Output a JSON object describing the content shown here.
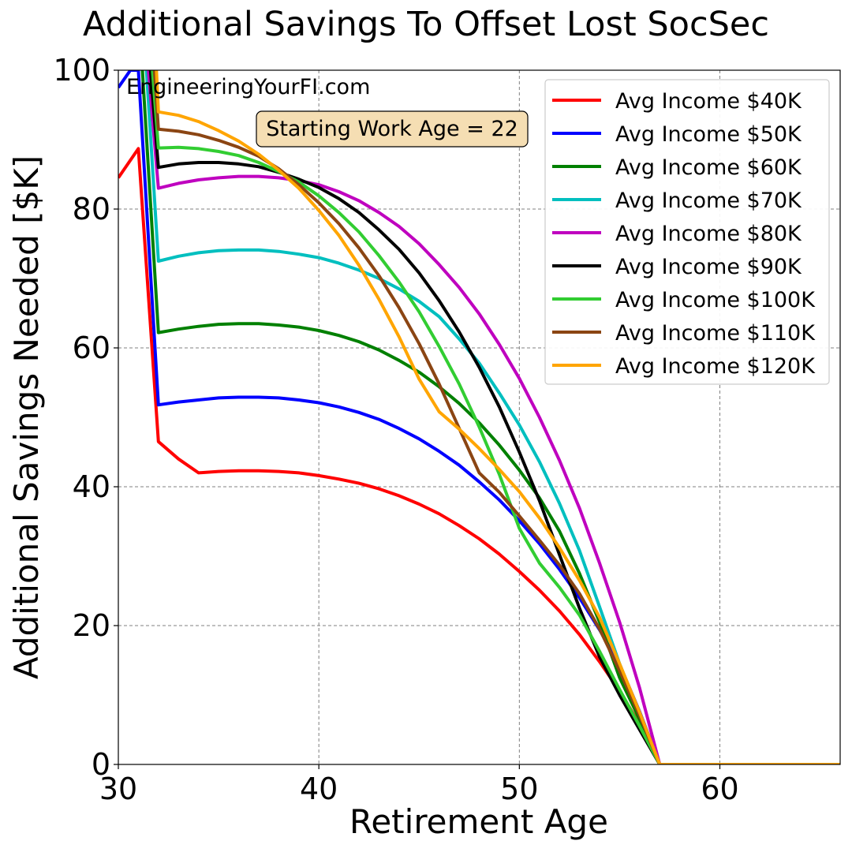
{
  "chart_data": {
    "type": "line",
    "title": "Additional Savings To Offset Lost SocSec",
    "xlabel": "Retirement Age",
    "ylabel": "Additional Savings Needed [$K]",
    "xlim": [
      30,
      66
    ],
    "ylim": [
      0,
      100
    ],
    "xticks": [
      30,
      40,
      50,
      60
    ],
    "yticks": [
      0,
      20,
      40,
      60,
      80,
      100
    ],
    "x_tick_labels": [
      "30",
      "40",
      "50",
      "60"
    ],
    "y_tick_labels": [
      "0",
      "20",
      "40",
      "60",
      "80",
      "100"
    ],
    "grid": true,
    "legend_position": "top-right",
    "watermark": "EngineeringYourFI.com",
    "annotation": "Starting Work Age = 22",
    "series": [
      {
        "name": "Avg Income $40K",
        "color": "#ff0000",
        "x": [
          30,
          31,
          32,
          33,
          34,
          35,
          36,
          37,
          38,
          39,
          40,
          41,
          42,
          43,
          44,
          45,
          46,
          47,
          48,
          49,
          50,
          51,
          52,
          53,
          54,
          55,
          56,
          57,
          58,
          59,
          60,
          61,
          62,
          63,
          64,
          65,
          66
        ],
        "values": [
          84.5,
          88.7,
          46.5,
          44,
          42,
          42.2,
          42.3,
          42.3,
          42.2,
          42,
          41.6,
          41.1,
          40.5,
          39.7,
          38.7,
          37.5,
          36.1,
          34.4,
          32.5,
          30.3,
          27.8,
          25.1,
          22.1,
          18.7,
          14.8,
          10.6,
          5.8,
          0,
          0,
          0,
          0,
          0,
          0,
          0,
          0,
          0,
          0
        ]
      },
      {
        "name": "Avg Income $50K",
        "color": "#0000ff",
        "x": [
          30,
          30.6,
          31,
          32,
          33,
          34,
          35,
          36,
          37,
          38,
          39,
          40,
          41,
          42,
          43,
          44,
          45,
          46,
          47,
          48,
          49,
          50,
          51,
          52,
          53,
          54,
          55,
          56,
          57,
          58,
          59,
          60,
          61,
          62,
          63,
          64,
          65,
          66
        ],
        "values": [
          97.5,
          100,
          100,
          51.8,
          52.2,
          52.5,
          52.8,
          52.9,
          52.9,
          52.8,
          52.5,
          52.1,
          51.5,
          50.7,
          49.7,
          48.4,
          46.9,
          45.1,
          43.1,
          40.7,
          38.1,
          35.1,
          31.8,
          28.1,
          24,
          19.4,
          14.4,
          7.6,
          0,
          0,
          0,
          0,
          0,
          0,
          0,
          0,
          0,
          0
        ]
      },
      {
        "name": "Avg Income $60K",
        "color": "#008000",
        "x": [
          31.2,
          32,
          33,
          34,
          35,
          36,
          37,
          38,
          39,
          40,
          41,
          42,
          43,
          44,
          45,
          46,
          47,
          48,
          49,
          50,
          51,
          52,
          53,
          54,
          55,
          56,
          57,
          58,
          59,
          60,
          61,
          62,
          63,
          64,
          65,
          66
        ],
        "values": [
          100,
          62.2,
          62.7,
          63.1,
          63.4,
          63.5,
          63.5,
          63.3,
          63,
          62.5,
          61.8,
          60.9,
          59.7,
          58.2,
          56.5,
          54.4,
          52,
          49.2,
          46,
          42.4,
          38.4,
          33.6,
          27.5,
          20.5,
          12.5,
          6.5,
          0,
          0,
          0,
          0,
          0,
          0,
          0,
          0,
          0,
          0
        ]
      },
      {
        "name": "Avg Income $70K",
        "color": "#00bfbf",
        "x": [
          31.4,
          32,
          33,
          34,
          35,
          36,
          37,
          38,
          39,
          40,
          41,
          42,
          43,
          44,
          45,
          46,
          47,
          48,
          49,
          50,
          51,
          52,
          53,
          54,
          55,
          56,
          57,
          58,
          59,
          60,
          61,
          62,
          63,
          64,
          65,
          66
        ],
        "values": [
          100,
          72.5,
          73.2,
          73.7,
          74,
          74.1,
          74.1,
          73.9,
          73.5,
          73,
          72.2,
          71.2,
          70,
          68.5,
          66.7,
          64.5,
          61.3,
          57.8,
          53.5,
          48.9,
          43.6,
          37.6,
          30.8,
          22.7,
          14.5,
          7.3,
          0,
          0,
          0,
          0,
          0,
          0,
          0,
          0,
          0,
          0
        ]
      },
      {
        "name": "Avg Income $80K",
        "color": "#bf00bf",
        "x": [
          31.5,
          32,
          33,
          34,
          35,
          36,
          37,
          38,
          39,
          40,
          41,
          42,
          43,
          44,
          45,
          46,
          47,
          48,
          49,
          50,
          51,
          52,
          53,
          54,
          55,
          56,
          57,
          58,
          59,
          60,
          61,
          62,
          63,
          64,
          65,
          66
        ],
        "values": [
          100,
          83,
          83.7,
          84.2,
          84.5,
          84.7,
          84.7,
          84.5,
          84.1,
          83.5,
          82.5,
          81.2,
          79.5,
          77.5,
          75,
          72,
          68.7,
          64.9,
          60.5,
          55.6,
          50,
          43.8,
          36.9,
          29,
          20.5,
          11,
          0,
          0,
          0,
          0,
          0,
          0,
          0,
          0,
          0,
          0
        ]
      },
      {
        "name": "Avg Income $90K",
        "color": "#000000",
        "x": [
          31.6,
          32,
          33,
          34,
          35,
          36,
          37,
          38,
          39,
          40,
          41,
          42,
          43,
          44,
          45,
          46,
          47,
          48,
          49,
          50,
          51,
          52,
          53,
          54,
          55,
          56,
          57,
          58,
          59,
          60,
          61,
          62,
          63,
          64,
          65,
          66
        ],
        "values": [
          100,
          86,
          86.5,
          86.7,
          86.7,
          86.5,
          86.1,
          85.3,
          84.3,
          83.1,
          81.5,
          79.5,
          77,
          74.2,
          70.8,
          66.8,
          62.3,
          57.2,
          51.5,
          45,
          38,
          30.2,
          22.5,
          15.5,
          10,
          5,
          0,
          0,
          0,
          0,
          0,
          0,
          0,
          0,
          0,
          0
        ]
      },
      {
        "name": "Avg Income $100K",
        "color": "#32cd32",
        "x": [
          31.7,
          32,
          33,
          34,
          35,
          36,
          37,
          38,
          39,
          40,
          41,
          42,
          43,
          44,
          45,
          46,
          47,
          48,
          49,
          50,
          51,
          52,
          53,
          54,
          55,
          56,
          57,
          58,
          59,
          60,
          61,
          62,
          63,
          64,
          65,
          66
        ],
        "values": [
          100,
          88.8,
          88.9,
          88.7,
          88.3,
          87.7,
          86.7,
          85.4,
          83.9,
          81.9,
          79.5,
          76.7,
          73.3,
          69.5,
          65.2,
          60.2,
          54.8,
          48.6,
          41.8,
          34,
          29,
          25.5,
          21.5,
          16.3,
          10.8,
          5.5,
          0,
          0,
          0,
          0,
          0,
          0,
          0,
          0,
          0,
          0
        ]
      },
      {
        "name": "Avg Income $110K",
        "color": "#8b4513",
        "x": [
          31.8,
          32,
          33,
          34,
          35,
          36,
          37,
          38,
          39,
          40,
          41,
          42,
          43,
          44,
          45,
          46,
          47,
          48,
          49,
          50,
          51,
          52,
          53,
          54,
          55,
          56,
          57,
          58,
          59,
          60,
          61,
          62,
          63,
          64,
          65,
          66
        ],
        "values": [
          100,
          91.5,
          91.2,
          90.7,
          89.9,
          88.9,
          87.6,
          85.8,
          83.5,
          80.9,
          77.9,
          74.4,
          70.4,
          65.8,
          60.6,
          54.8,
          48.4,
          42,
          39.2,
          35.8,
          32.3,
          28.7,
          24.6,
          19.5,
          13.5,
          7,
          0,
          0,
          0,
          0,
          0,
          0,
          0,
          0,
          0,
          0
        ]
      },
      {
        "name": "Avg Income $120K",
        "color": "#ffa500",
        "x": [
          31.9,
          32,
          33,
          34,
          35,
          36,
          37,
          38,
          39,
          40,
          41,
          42,
          43,
          44,
          45,
          46,
          47,
          48,
          49,
          50,
          51,
          52,
          53,
          54,
          55,
          56,
          57,
          58,
          59,
          60,
          61,
          62,
          63,
          64,
          65,
          66
        ],
        "values": [
          100,
          94,
          93.5,
          92.6,
          91.3,
          89.8,
          87.9,
          85.6,
          83,
          79.8,
          76.2,
          71.9,
          67,
          61.6,
          55.5,
          50.8,
          48.3,
          45.5,
          42.5,
          39.3,
          35.5,
          31.2,
          26.5,
          21.2,
          14.5,
          7.5,
          0,
          0,
          0,
          0,
          0,
          0,
          0,
          0,
          0,
          0
        ]
      }
    ]
  }
}
